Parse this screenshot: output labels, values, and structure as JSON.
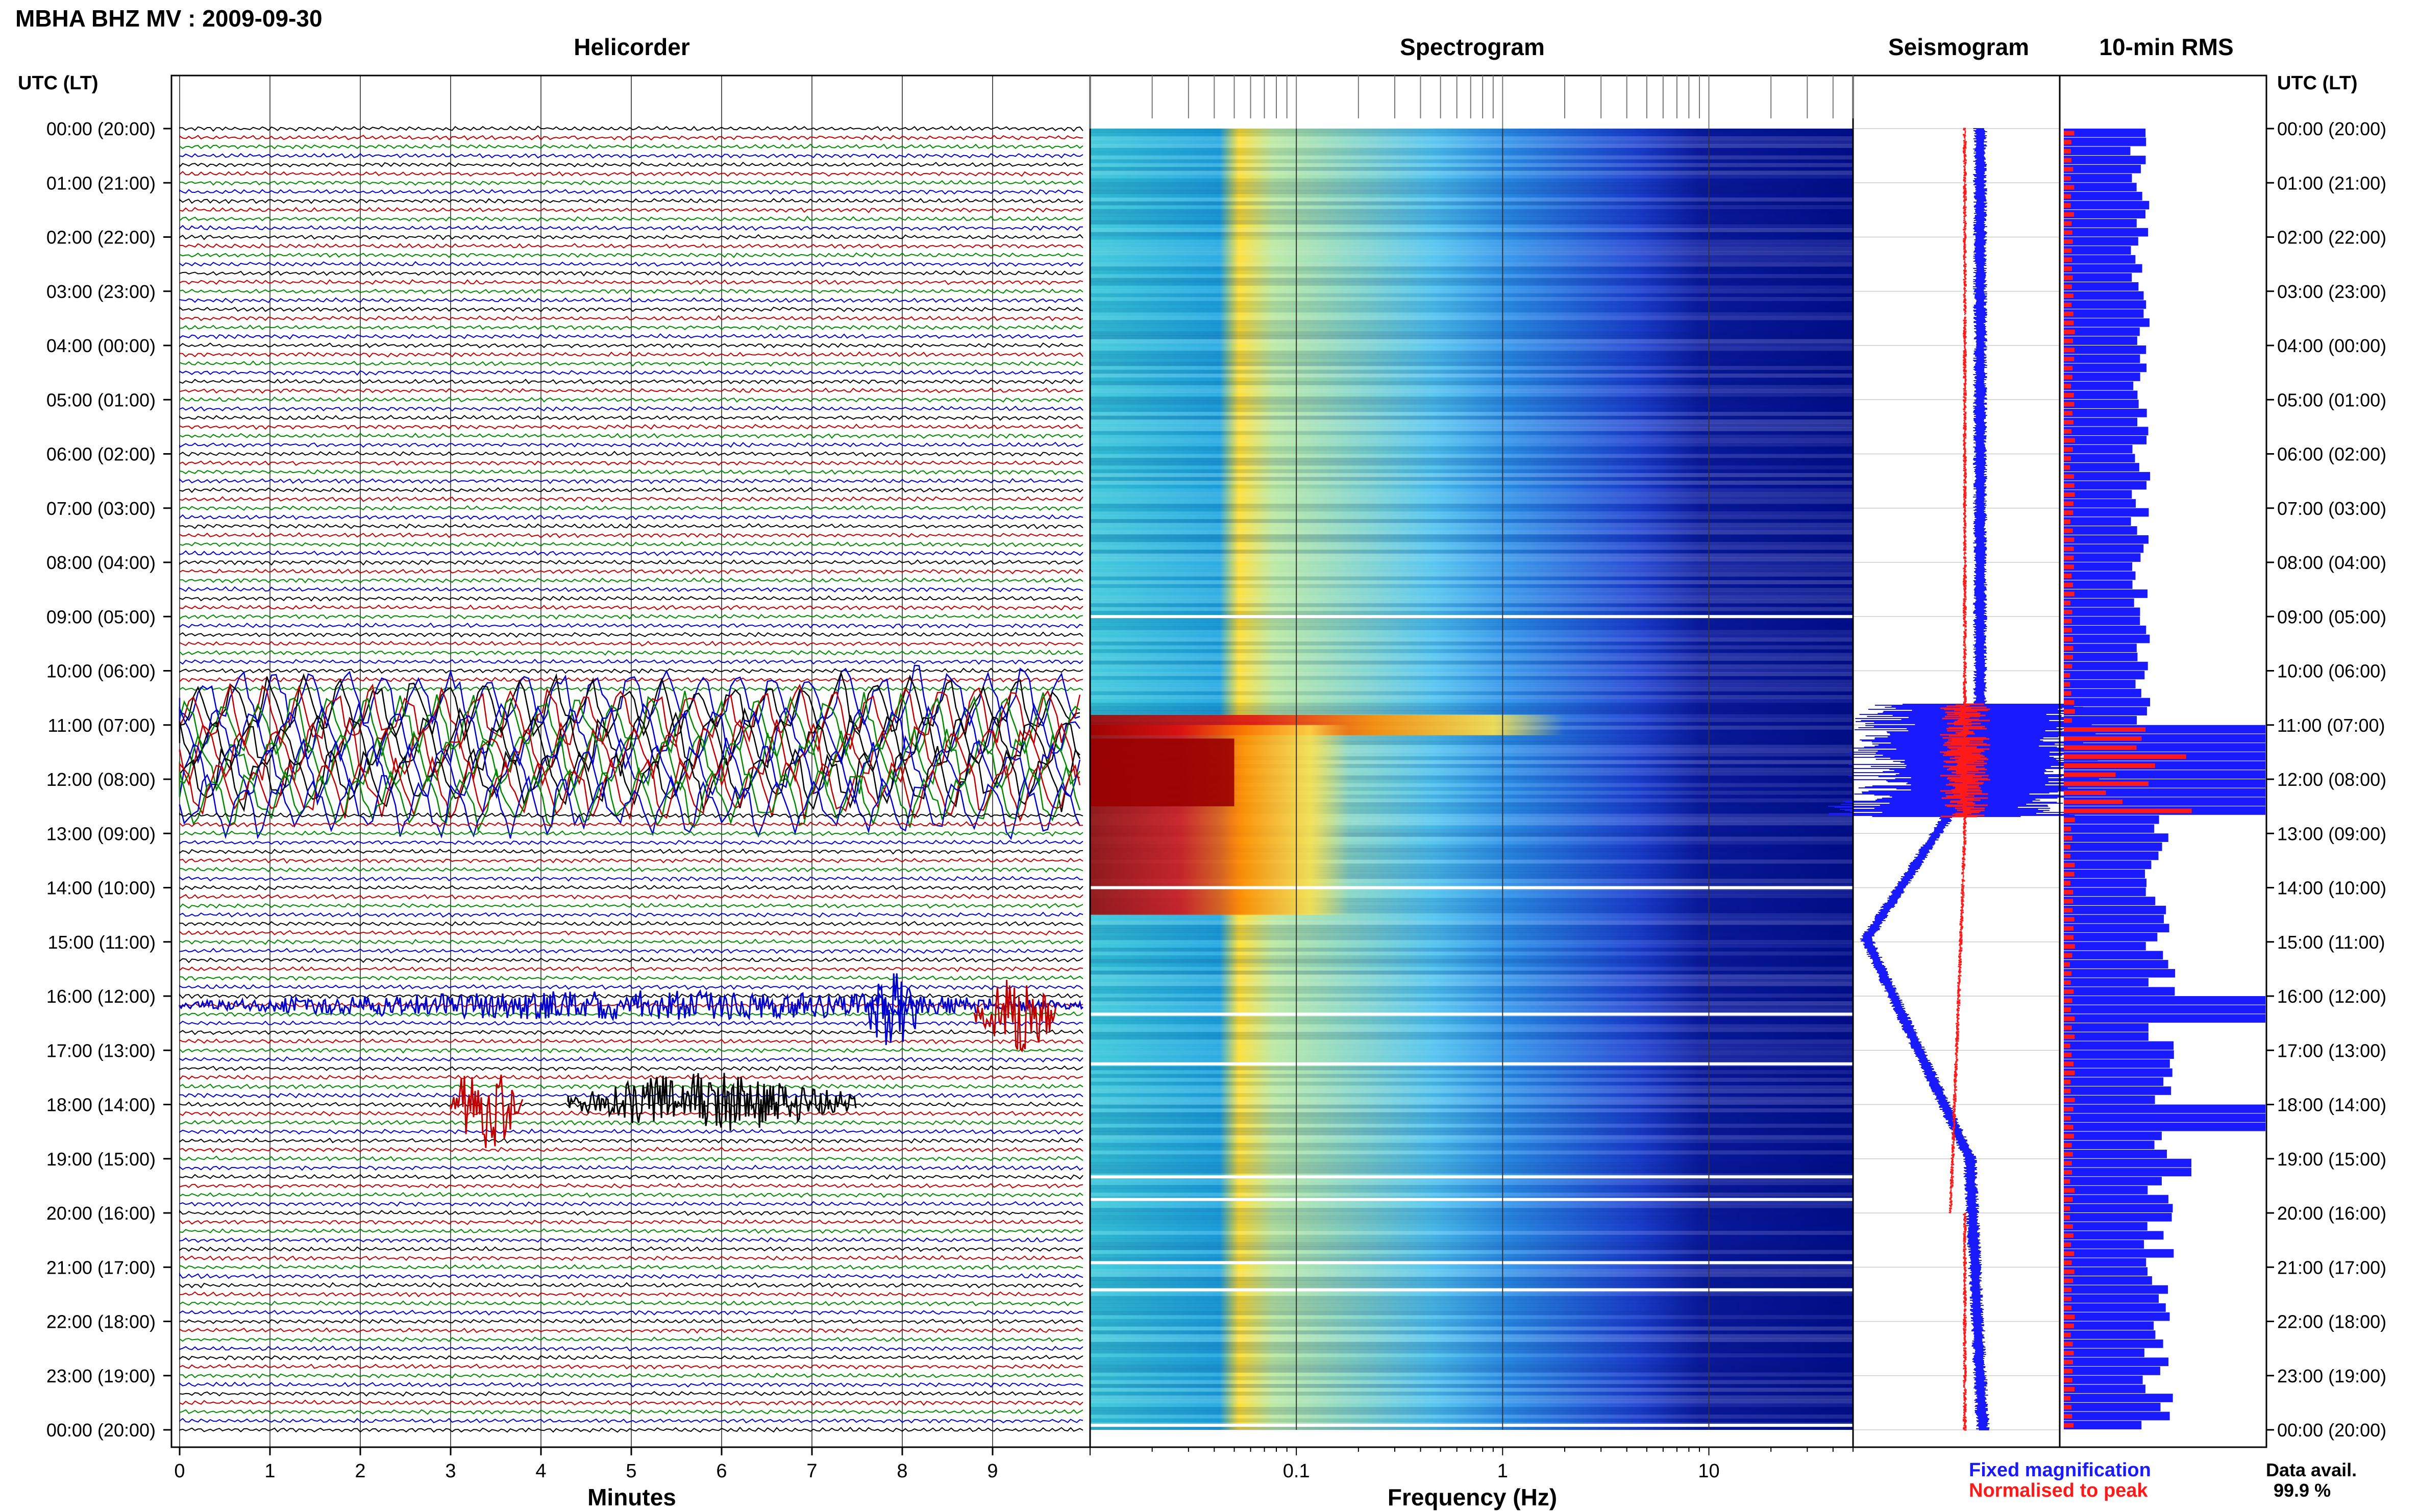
{
  "header": {
    "station": "MBHA BHZ MV : 2009-09-30"
  },
  "panels": {
    "helicorder": "Helicorder",
    "spectrogram": "Spectrogram",
    "seismogram": "Seismogram",
    "rms": "10-min RMS"
  },
  "axis": {
    "time_label_left": "UTC (LT)",
    "time_label_right": "UTC (LT)",
    "minutes_label": "Minutes",
    "frequency_label": "Frequency (Hz)"
  },
  "legend": {
    "fixed": "Fixed magnification",
    "normalised": "Normalised to peak",
    "fixed_color": "#1a1aff",
    "normalised_color": "#ff1a1a"
  },
  "data_avail": {
    "label": "Data avail.",
    "value": "99.9 %"
  },
  "chart_data": [
    {
      "type": "line",
      "title": "Helicorder",
      "xlabel": "Minutes",
      "ylabel": "UTC (LT)",
      "xlim": [
        0,
        10
      ],
      "x_ticks": [
        "0",
        "1",
        "2",
        "3",
        "4",
        "5",
        "6",
        "7",
        "8",
        "9"
      ],
      "y_ticks": [
        "00:00 (20:00)",
        "01:00 (21:00)",
        "02:00 (22:00)",
        "03:00 (23:00)",
        "04:00 (00:00)",
        "05:00 (01:00)",
        "06:00 (02:00)",
        "07:00 (03:00)",
        "08:00 (04:00)",
        "09:00 (05:00)",
        "10:00 (06:00)",
        "11:00 (07:00)",
        "12:00 (08:00)",
        "13:00 (09:00)",
        "14:00 (10:00)",
        "15:00 (11:00)",
        "16:00 (12:00)",
        "17:00 (13:00)",
        "18:00 (14:00)",
        "19:00 (15:00)",
        "20:00 (16:00)",
        "21:00 (17:00)",
        "22:00 (18:00)",
        "23:00 (19:00)",
        "00:00 (20:00)"
      ],
      "trace_colors": [
        "#000000",
        "#c00000",
        "#008800",
        "#0000cc"
      ],
      "events": [
        {
          "time": "10:30-12:30",
          "description": "large amplitude signal"
        },
        {
          "time": "16:10",
          "minute_range": [
            0,
            10
          ]
        },
        {
          "time": "18:00",
          "minute_range": [
            3,
            7.5
          ]
        }
      ]
    },
    {
      "type": "heatmap",
      "title": "Spectrogram",
      "xlabel": "Frequency (Hz)",
      "x_scale": "log",
      "xlim": [
        0.01,
        50
      ],
      "x_ticks": [
        "0.1",
        "1",
        "10"
      ],
      "colormap": "jet",
      "data_gaps_utc": [
        "09:00",
        "14:00",
        "16:20",
        "17:15",
        "19:20",
        "19:45",
        "20:55",
        "21:25",
        "23:55"
      ]
    },
    {
      "type": "line",
      "title": "Seismogram",
      "series": [
        {
          "name": "Fixed magnification",
          "color": "#1a1aff"
        },
        {
          "name": "Normalised to peak",
          "color": "#ff1a1a"
        }
      ]
    },
    {
      "type": "bar",
      "title": "10-min RMS",
      "orientation": "horizontal",
      "series": [
        {
          "name": "Fixed magnification",
          "color": "#1a1aff"
        },
        {
          "name": "Normalised to peak",
          "color": "#ff1a1a"
        }
      ]
    }
  ]
}
